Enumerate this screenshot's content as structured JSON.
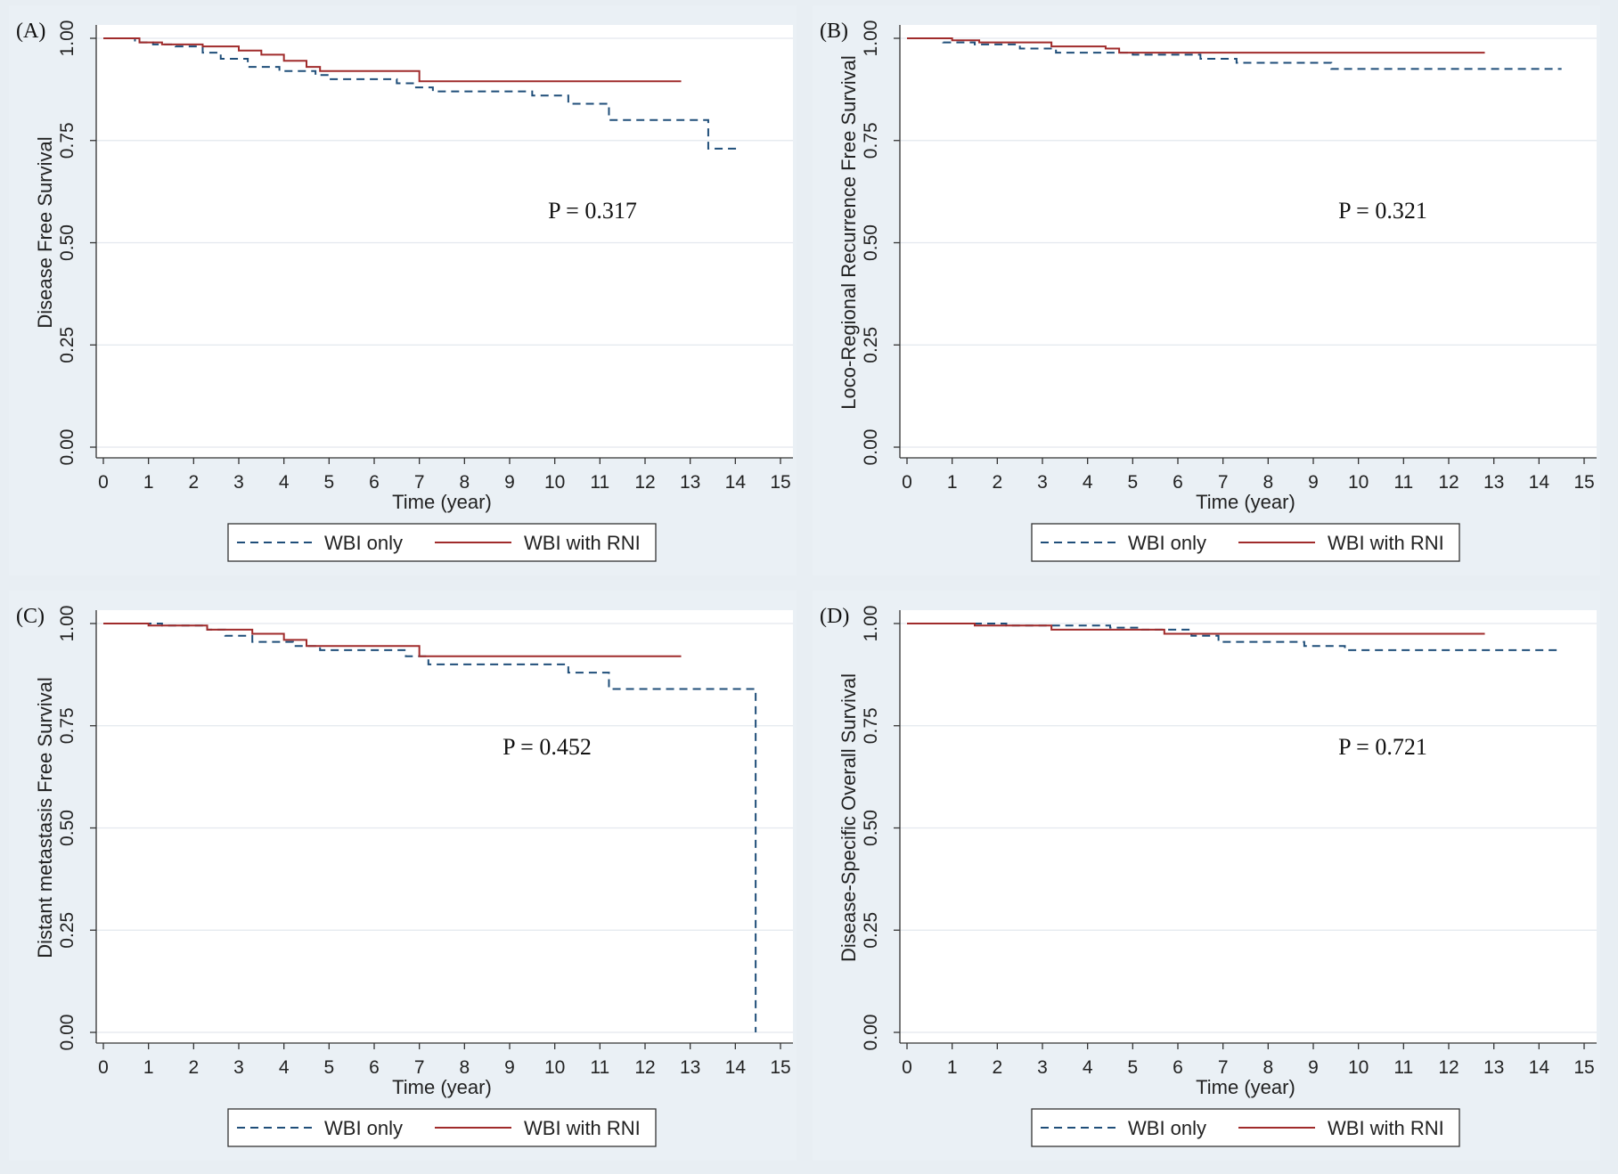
{
  "chart_data": [
    {
      "type": "line",
      "panel_label": "(A)",
      "xlabel": "Time (year)",
      "ylabel": "Disease Free Survival",
      "xlim": [
        0,
        15
      ],
      "ylim": [
        0,
        1
      ],
      "xticks": [
        "0",
        "1",
        "2",
        "3",
        "4",
        "5",
        "6",
        "7",
        "8",
        "9",
        "10",
        "11",
        "12",
        "13",
        "14",
        "15"
      ],
      "yticks": [
        "0.00",
        "0.25",
        "0.50",
        "0.75",
        "1.00"
      ],
      "annotation": "P = 0.317",
      "legend": [
        "WBI only",
        "WBI with RNI"
      ],
      "series": [
        {
          "name": "WBI only",
          "style": "dashed",
          "color": "#1f4e79",
          "x": [
            0,
            0.7,
            1.1,
            1.6,
            2.2,
            2.6,
            3.2,
            3.9,
            4.7,
            5.0,
            6.5,
            6.9,
            7.3,
            8.0,
            9.5,
            10.3,
            11.2,
            11.5,
            12.5,
            13.4,
            14.1
          ],
          "y": [
            1.0,
            0.99,
            0.985,
            0.98,
            0.965,
            0.95,
            0.93,
            0.92,
            0.91,
            0.9,
            0.89,
            0.88,
            0.87,
            0.87,
            0.86,
            0.84,
            0.8,
            0.8,
            0.8,
            0.73,
            0.73
          ]
        },
        {
          "name": "WBI with RNI",
          "style": "solid",
          "color": "#a02b2b",
          "x": [
            0,
            0.8,
            1.3,
            2.2,
            3.0,
            3.5,
            4.0,
            4.5,
            4.8,
            7.0,
            12.8
          ],
          "y": [
            1.0,
            0.99,
            0.985,
            0.98,
            0.97,
            0.96,
            0.945,
            0.93,
            0.92,
            0.895,
            0.895
          ]
        }
      ]
    },
    {
      "type": "line",
      "panel_label": "(B)",
      "xlabel": "Time (year)",
      "ylabel": "Loco-Regional Recurrence Free Survival",
      "xlim": [
        0,
        15
      ],
      "ylim": [
        0,
        1
      ],
      "xticks": [
        "0",
        "1",
        "2",
        "3",
        "4",
        "5",
        "6",
        "7",
        "8",
        "9",
        "10",
        "11",
        "12",
        "13",
        "14",
        "15"
      ],
      "yticks": [
        "0.00",
        "0.25",
        "0.50",
        "0.75",
        "1.00"
      ],
      "annotation": "P = 0.321",
      "legend": [
        "WBI only",
        "WBI with RNI"
      ],
      "series": [
        {
          "name": "WBI only",
          "style": "dashed",
          "color": "#1f4e79",
          "x": [
            0,
            0.8,
            1.5,
            2.5,
            3.3,
            4.5,
            5.0,
            6.5,
            7.3,
            9.4,
            14.5
          ],
          "y": [
            1.0,
            0.99,
            0.985,
            0.975,
            0.965,
            0.965,
            0.96,
            0.95,
            0.94,
            0.925,
            0.925
          ]
        },
        {
          "name": "WBI with RNI",
          "style": "solid",
          "color": "#a02b2b",
          "x": [
            0,
            1.0,
            1.6,
            3.2,
            4.4,
            4.7,
            12.8
          ],
          "y": [
            1.0,
            0.995,
            0.99,
            0.98,
            0.975,
            0.965,
            0.965
          ]
        }
      ]
    },
    {
      "type": "line",
      "panel_label": "(C)",
      "xlabel": "Time (year)",
      "ylabel": "Distant metastasis Free Survival",
      "xlim": [
        0,
        15
      ],
      "ylim": [
        0,
        1
      ],
      "xticks": [
        "0",
        "1",
        "2",
        "3",
        "4",
        "5",
        "6",
        "7",
        "8",
        "9",
        "10",
        "11",
        "12",
        "13",
        "14",
        "15"
      ],
      "yticks": [
        "0.00",
        "0.25",
        "0.50",
        "0.75",
        "1.00"
      ],
      "annotation": "P = 0.452",
      "legend": [
        "WBI only",
        "WBI with RNI"
      ],
      "series": [
        {
          "name": "WBI only",
          "style": "dashed",
          "color": "#1f4e79",
          "x": [
            0,
            1.3,
            2.3,
            2.7,
            3.3,
            4.2,
            4.8,
            6.7,
            7.2,
            10.3,
            11.2,
            14.45,
            14.45
          ],
          "y": [
            1.0,
            0.995,
            0.985,
            0.97,
            0.955,
            0.945,
            0.935,
            0.92,
            0.9,
            0.88,
            0.84,
            0.84,
            0.0
          ]
        },
        {
          "name": "WBI with RNI",
          "style": "solid",
          "color": "#a02b2b",
          "x": [
            0,
            1.0,
            2.3,
            3.3,
            4.0,
            4.5,
            7.0,
            12.8
          ],
          "y": [
            1.0,
            0.995,
            0.985,
            0.975,
            0.96,
            0.945,
            0.92,
            0.92
          ]
        }
      ]
    },
    {
      "type": "line",
      "panel_label": "(D)",
      "xlabel": "Time (year)",
      "ylabel": "Disease-Specific Overall Survival",
      "xlim": [
        0,
        15
      ],
      "ylim": [
        0,
        1
      ],
      "xticks": [
        "0",
        "1",
        "2",
        "3",
        "4",
        "5",
        "6",
        "7",
        "8",
        "9",
        "10",
        "11",
        "12",
        "13",
        "14",
        "15"
      ],
      "yticks": [
        "0.00",
        "0.25",
        "0.50",
        "0.75",
        "1.00"
      ],
      "annotation": "P = 0.721",
      "legend": [
        "WBI only",
        "WBI with RNI"
      ],
      "series": [
        {
          "name": "WBI only",
          "style": "dashed",
          "color": "#1f4e79",
          "x": [
            0,
            2.2,
            4.5,
            5.2,
            6.3,
            6.9,
            8.8,
            9.7,
            14.4
          ],
          "y": [
            1.0,
            0.995,
            0.99,
            0.985,
            0.97,
            0.955,
            0.945,
            0.935,
            0.935
          ]
        },
        {
          "name": "WBI with RNI",
          "style": "solid",
          "color": "#a02b2b",
          "x": [
            0,
            1.5,
            3.2,
            5.7,
            12.8
          ],
          "y": [
            1.0,
            0.995,
            0.985,
            0.975,
            0.975
          ]
        }
      ]
    }
  ]
}
